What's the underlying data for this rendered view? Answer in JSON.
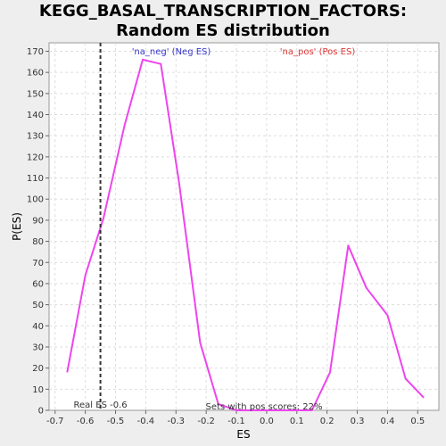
{
  "chart_data": {
    "type": "line",
    "title": "KEGG_BASAL_TRANSCRIPTION_FACTORS: Random ES distribution",
    "xlabel": "ES",
    "ylabel": "P(ES)",
    "xlim": [
      -0.72,
      0.57
    ],
    "ylim": [
      0,
      174
    ],
    "x_ticks": [
      "-0.7",
      "-0.6",
      "-0.5",
      "-0.4",
      "-0.3",
      "-0.2",
      "-0.1",
      "0.0",
      "0.1",
      "0.2",
      "0.3",
      "0.4",
      "0.5"
    ],
    "y_ticks": [
      "0",
      "10",
      "20",
      "30",
      "40",
      "50",
      "60",
      "70",
      "80",
      "90",
      "100",
      "110",
      "120",
      "130",
      "140",
      "150",
      "160",
      "170"
    ],
    "grid": true,
    "series": [
      {
        "color": "#ee44ee",
        "x": [
          -0.66,
          -0.6,
          -0.54,
          -0.47,
          -0.41,
          -0.35,
          -0.29,
          -0.22,
          -0.16,
          -0.1,
          -0.04,
          0.03,
          0.09,
          0.15,
          0.21,
          0.27,
          0.33,
          0.4,
          0.46,
          0.52
        ],
        "y": [
          18,
          64,
          91,
          135,
          166,
          164,
          108,
          32,
          3,
          0,
          0,
          0,
          0,
          0,
          18,
          78,
          58,
          45,
          15,
          6
        ]
      }
    ],
    "real_es": {
      "value": -0.55,
      "label": "Real ES -0.6",
      "color": "#333333"
    },
    "annotations": {
      "neg": {
        "text": "'na_neg' (Neg ES)",
        "color": "#3333cc"
      },
      "pos": {
        "text": "'na_pos' (Pos ES)",
        "color": "#dd3333"
      },
      "pos_scores": {
        "text": "Sets with pos scores: 22%",
        "color": "#333333"
      }
    }
  }
}
